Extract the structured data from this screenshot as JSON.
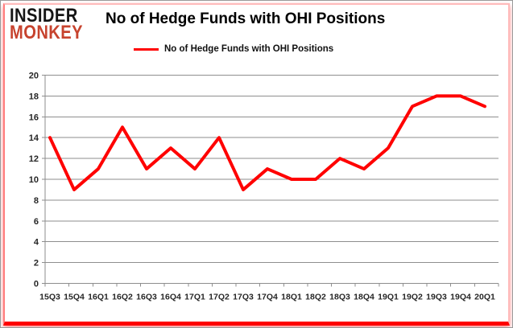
{
  "logo": {
    "line1": "INSIDER",
    "line2": "MONKEY"
  },
  "title": "No of Hedge Funds with OHI Positions",
  "legend": {
    "label": "No of Hedge Funds with OHI Positions",
    "color": "#ff0000"
  },
  "colors": {
    "line": "#ff0000",
    "grid": "#8e8e8e",
    "axis": "#8e8e8e",
    "frame_red": "#fe0000",
    "logo_black": "#151515",
    "logo_red": "#c7432e"
  },
  "chart_data": {
    "type": "line",
    "title": "No of Hedge Funds with OHI Positions",
    "categories": [
      "15Q3",
      "15Q4",
      "16Q1",
      "16Q2",
      "16Q3",
      "16Q4",
      "17Q1",
      "17Q2",
      "17Q3",
      "17Q4",
      "18Q1",
      "18Q2",
      "18Q3",
      "18Q4",
      "19Q1",
      "19Q2",
      "19Q3",
      "19Q4",
      "20Q1"
    ],
    "series": [
      {
        "name": "No of Hedge Funds with OHI Positions",
        "color": "#ff0000",
        "values": [
          14,
          9,
          11,
          15,
          11,
          13,
          11,
          14,
          9,
          11,
          10,
          10,
          12,
          11,
          13,
          17,
          18,
          18,
          17
        ]
      }
    ],
    "xlabel": "",
    "ylabel": "",
    "ylim": [
      0,
      20
    ],
    "yticks": [
      0,
      2,
      4,
      6,
      8,
      10,
      12,
      14,
      16,
      18,
      20
    ],
    "grid": "horizontal",
    "legend_position": "top-center"
  }
}
